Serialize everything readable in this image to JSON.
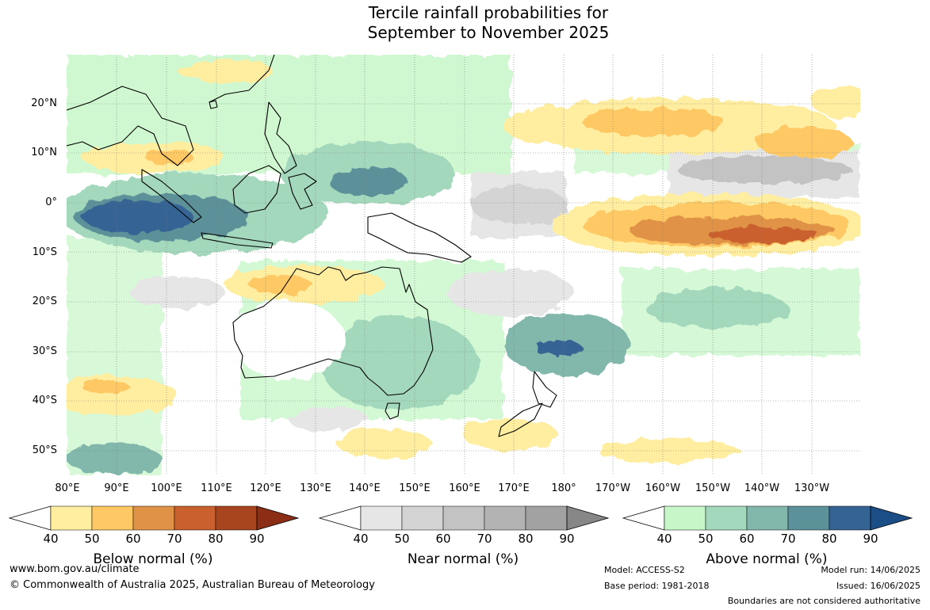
{
  "title_line1": "Tercile rainfall probabilities for",
  "title_line2": "September to November 2025",
  "lat_labels": [
    "20°N",
    "10°N",
    "0°",
    "10°S",
    "20°S",
    "30°S",
    "40°S",
    "50°S"
  ],
  "lon_labels": [
    "80°E",
    "90°E",
    "100°E",
    "110°E",
    "120°E",
    "130°E",
    "140°E",
    "150°E",
    "160°E",
    "170°E",
    "180°",
    "170°W",
    "160°W",
    "150°W",
    "140°W",
    "130°W"
  ],
  "colorbars": [
    {
      "label": "Below normal (%)",
      "ticks": [
        "40",
        "50",
        "60",
        "70",
        "80",
        "90"
      ],
      "colors": [
        "#ffeda0",
        "#fec965",
        "#e09346",
        "#c9602d",
        "#a8441e",
        "#8c2d15"
      ]
    },
    {
      "label": "Near normal (%)",
      "ticks": [
        "40",
        "50",
        "60",
        "70",
        "80",
        "90"
      ],
      "colors": [
        "#e6e6e6",
        "#d4d4d4",
        "#c3c3c3",
        "#b3b3b3",
        "#a2a2a2",
        "#878787"
      ]
    },
    {
      "label": "Above normal (%)",
      "ticks": [
        "40",
        "50",
        "60",
        "70",
        "80",
        "90"
      ],
      "colors": [
        "#c7f7c8",
        "#a4d8bc",
        "#82b8ac",
        "#5b9199",
        "#356393",
        "#1b4e86"
      ]
    }
  ],
  "footer": {
    "website": "www.bom.gov.au/climate",
    "copyright": "© Commonwealth of Australia 2025, Australian Bureau of Meteorology",
    "model": "Model: ACCESS-S2",
    "base_period": "Base period: 1981-2018",
    "model_run": "Model run: 14/06/2025",
    "issued": "Issued: 16/06/2025",
    "disclaimer": "Boundaries are not considered authoritative"
  }
}
